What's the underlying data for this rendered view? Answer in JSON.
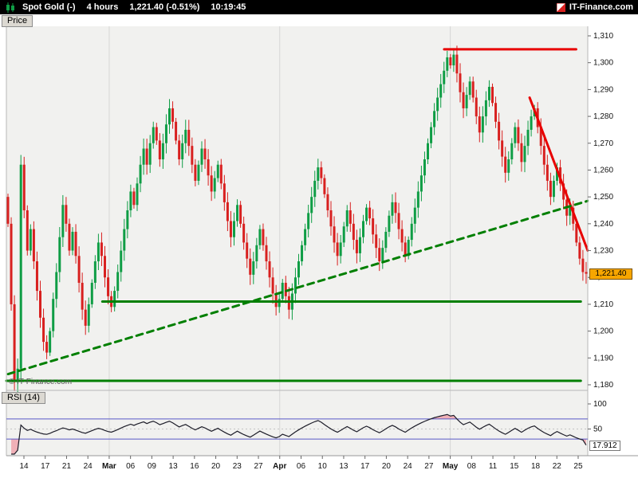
{
  "header": {
    "instrument": "Spot Gold (-)",
    "timeframe": "4 hours",
    "quote": "1,221.40 (-0.51%)",
    "time": "10:19:45",
    "brand": "IT-Finance.com"
  },
  "price_pane": {
    "tab_label": "Price",
    "copyright": "© IT-Finance.com",
    "last_price_label": "1,221.40",
    "y_tick_labels": [
      "1,310",
      "1,300",
      "1,290",
      "1,280",
      "1,270",
      "1,260",
      "1,250",
      "1,240",
      "1,230",
      "1,220",
      "1,210",
      "1,200",
      "1,190",
      "1,180"
    ]
  },
  "rsi_pane": {
    "tab_label": "RSI (14)",
    "y_tick_labels": [
      "100",
      "50"
    ],
    "last_value_label": "17.912"
  },
  "chart_data": [
    {
      "type": "candlestick",
      "title": "Spot Gold (-) 4 hours",
      "ylim": [
        1180,
        1310
      ],
      "y_tick_step": 10,
      "first_open": 1250,
      "last_price": 1221.4,
      "closes": [
        1240,
        1210,
        1181,
        1186,
        1262,
        1245,
        1230,
        1238,
        1226,
        1215,
        1205,
        1196,
        1192,
        1200,
        1212,
        1222,
        1235,
        1247,
        1240,
        1230,
        1237,
        1228,
        1218,
        1208,
        1202,
        1210,
        1218,
        1226,
        1233,
        1228,
        1220,
        1213,
        1209,
        1215,
        1222,
        1230,
        1238,
        1245,
        1252,
        1247,
        1255,
        1262,
        1268,
        1262,
        1270,
        1276,
        1271,
        1264,
        1270,
        1277,
        1283,
        1278,
        1271,
        1264,
        1270,
        1275,
        1269,
        1262,
        1256,
        1262,
        1268,
        1264,
        1258,
        1252,
        1257,
        1262,
        1255,
        1248,
        1241,
        1235,
        1241,
        1247,
        1240,
        1233,
        1227,
        1221,
        1226,
        1232,
        1238,
        1232,
        1226,
        1220,
        1214,
        1209,
        1212,
        1218,
        1213,
        1208,
        1214,
        1220,
        1226,
        1232,
        1238,
        1244,
        1250,
        1256,
        1261,
        1257,
        1251,
        1245,
        1239,
        1233,
        1228,
        1233,
        1239,
        1245,
        1240,
        1234,
        1229,
        1235,
        1241,
        1246,
        1242,
        1236,
        1231,
        1226,
        1231,
        1237,
        1243,
        1248,
        1244,
        1238,
        1233,
        1228,
        1234,
        1240,
        1246,
        1252,
        1258,
        1264,
        1270,
        1276,
        1282,
        1287,
        1292,
        1297,
        1302,
        1299,
        1303,
        1296,
        1289,
        1283,
        1288,
        1293,
        1287,
        1280,
        1274,
        1280,
        1286,
        1291,
        1285,
        1278,
        1271,
        1265,
        1259,
        1264,
        1270,
        1276,
        1270,
        1263,
        1269,
        1275,
        1280,
        1283,
        1276,
        1269,
        1262,
        1256,
        1250,
        1256,
        1261,
        1255,
        1249,
        1243,
        1246,
        1240,
        1233,
        1227,
        1222,
        1221.4
      ],
      "x_axis_labels": [
        "14",
        "17",
        "21",
        "24",
        "Mar",
        "06",
        "09",
        "13",
        "16",
        "20",
        "23",
        "27",
        "Apr",
        "06",
        "10",
        "13",
        "17",
        "20",
        "24",
        "27",
        "May",
        "08",
        "11",
        "15",
        "18",
        "22",
        "25"
      ],
      "month_labels": [
        "Mar",
        "Apr",
        "May"
      ],
      "trendlines": [
        {
          "name": "resistance-horizontal",
          "color": "#e80000",
          "style": "solid",
          "width": 3,
          "points": [
            [
              0.753,
              1305
            ],
            [
              0.98,
              1305
            ]
          ]
        },
        {
          "name": "descending-trendline",
          "color": "#e80000",
          "style": "solid",
          "width": 3,
          "points": [
            [
              0.9,
              1287
            ],
            [
              1.0,
              1230
            ]
          ]
        },
        {
          "name": "support-horizontal-1210",
          "color": "#007f00",
          "style": "solid",
          "width": 3,
          "points": [
            [
              0.165,
              1211
            ],
            [
              0.988,
              1211
            ]
          ]
        },
        {
          "name": "support-horizontal-1181",
          "color": "#007f00",
          "style": "solid",
          "width": 3,
          "points": [
            [
              0.0,
              1181.5
            ],
            [
              0.988,
              1181.5
            ]
          ]
        },
        {
          "name": "ascending-dashed-trendline",
          "color": "#007f00",
          "style": "dashed",
          "width": 3,
          "points": [
            [
              0.003,
              1184
            ],
            [
              1.0,
              1248.5
            ]
          ]
        }
      ],
      "colors": {
        "up": "#0f9d45",
        "down": "#d8201f",
        "grid": "#d6d6d6",
        "pane_bg": "#f1f1ef",
        "last_price_bg": "#f7a600"
      }
    },
    {
      "type": "line",
      "name": "RSI (14)",
      "period": 14,
      "ylim": [
        0,
        100
      ],
      "bands": [
        70,
        30
      ],
      "midline": 50,
      "last_value": 17.912,
      "colors": {
        "line": "#1c1c28",
        "band": "#5a5ac8",
        "fill": "#f0a9b0"
      }
    }
  ]
}
